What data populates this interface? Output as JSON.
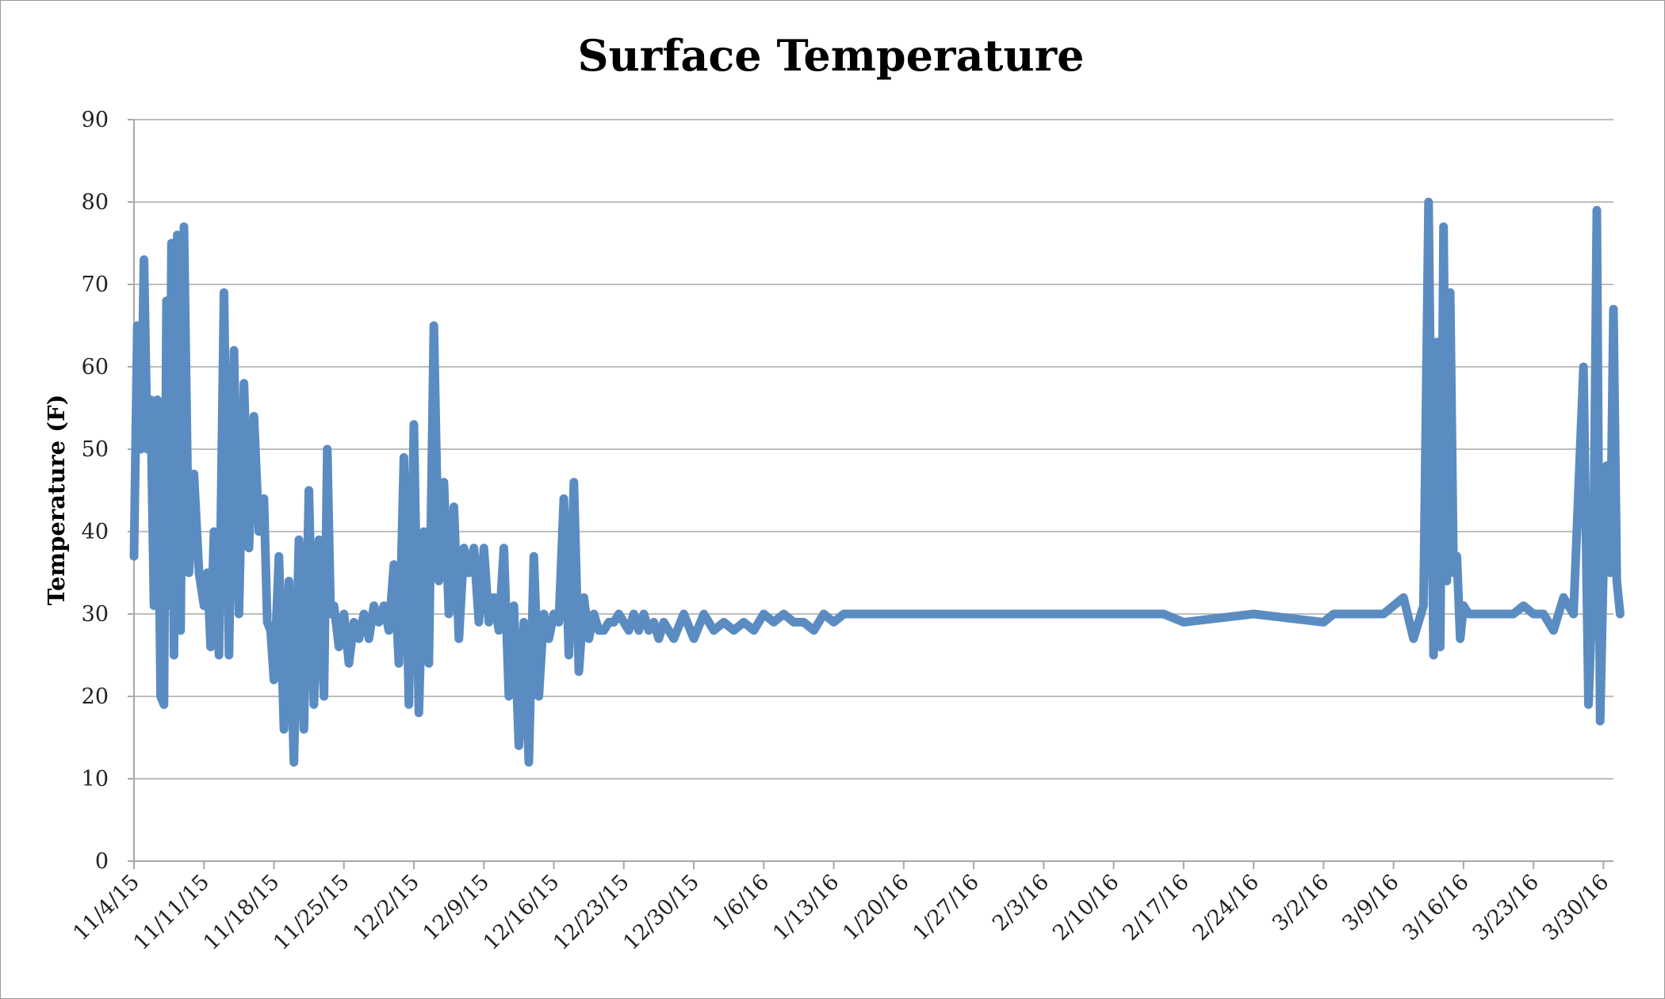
{
  "chart_data": {
    "type": "line",
    "title": "Surface Temperature",
    "xlabel": "",
    "ylabel": "Temperature (F)",
    "ylim": [
      0,
      90
    ],
    "y_ticks": [
      0,
      10,
      20,
      30,
      40,
      50,
      60,
      70,
      80,
      90
    ],
    "x_range": [
      "11/4/15",
      "3/31/16"
    ],
    "x_tick_labels": [
      "11/4/15",
      "11/11/15",
      "11/18/15",
      "11/25/15",
      "12/2/15",
      "12/9/15",
      "12/16/15",
      "12/23/15",
      "12/30/15",
      "1/6/16",
      "1/13/16",
      "1/20/16",
      "1/27/16",
      "2/3/16",
      "2/10/16",
      "2/17/16",
      "2/24/16",
      "3/2/16",
      "3/9/16",
      "3/16/16",
      "3/23/16",
      "3/30/16"
    ],
    "grid": true,
    "legend": "none",
    "series": [
      {
        "color": "#5b8cc1",
        "x": [
          "11/4/15",
          "11/4/15",
          "11/4/15",
          "11/5/15",
          "11/5/15",
          "11/5/15",
          "11/6/15",
          "11/6/15",
          "11/6/15",
          "11/7/15",
          "11/7/15",
          "11/7/15",
          "11/7/15",
          "11/8/15",
          "11/8/15",
          "11/8/15",
          "11/9/15",
          "11/9/15",
          "11/10/15",
          "11/10/15",
          "11/11/15",
          "11/11/15",
          "11/11/15",
          "11/12/15",
          "11/12/15",
          "11/13/15",
          "11/13/15",
          "11/14/15",
          "11/14/15",
          "11/15/15",
          "11/15/15",
          "11/16/15",
          "11/16/15",
          "11/17/15",
          "11/17/15",
          "11/17/15",
          "11/18/15",
          "11/18/15",
          "11/19/15",
          "11/19/15",
          "11/20/15",
          "11/20/15",
          "11/21/15",
          "11/21/15",
          "11/22/15",
          "11/22/15",
          "11/23/15",
          "11/23/15",
          "11/23/15",
          "11/24/15",
          "11/24/15",
          "11/25/15",
          "11/25/15",
          "11/26/15",
          "11/26/15",
          "11/27/15",
          "11/27/15",
          "11/28/15",
          "11/28/15",
          "11/29/15",
          "11/29/15",
          "11/30/15",
          "11/30/15",
          "12/1/15",
          "12/1/15",
          "12/2/15",
          "12/2/15",
          "12/3/15",
          "12/3/15",
          "12/4/15",
          "12/4/15",
          "12/5/15",
          "12/5/15",
          "12/6/15",
          "12/6/15",
          "12/7/15",
          "12/7/15",
          "12/8/15",
          "12/8/15",
          "12/9/15",
          "12/9/15",
          "12/10/15",
          "12/10/15",
          "12/11/15",
          "12/11/15",
          "12/12/15",
          "12/12/15",
          "12/13/15",
          "12/13/15",
          "12/14/15",
          "12/14/15",
          "12/15/15",
          "12/15/15",
          "12/16/15",
          "12/16/15",
          "12/17/15",
          "12/17/15",
          "12/18/15",
          "12/18/15",
          "12/19/15",
          "12/19/15",
          "12/20/15",
          "12/20/15",
          "12/21/15",
          "12/21/15",
          "12/22/15",
          "12/22/15",
          "12/23/15",
          "12/23/15",
          "12/24/15",
          "12/24/15",
          "12/25/15",
          "12/25/15",
          "12/26/15",
          "12/26/15",
          "12/27/15",
          "12/28/15",
          "12/29/15",
          "12/30/15",
          "12/31/15",
          "1/1/16",
          "1/2/16",
          "1/3/16",
          "1/4/16",
          "1/5/16",
          "1/6/16",
          "1/7/16",
          "1/8/16",
          "1/9/16",
          "1/10/16",
          "1/11/16",
          "1/12/16",
          "1/13/16",
          "1/14/16",
          "1/15/16",
          "1/16/16",
          "1/17/16",
          "1/18/16",
          "1/19/16",
          "1/20/16",
          "1/21/16",
          "1/22/16",
          "1/23/16",
          "1/25/16",
          "1/27/16",
          "1/30/16",
          "2/3/16",
          "2/10/16",
          "2/14/16",
          "2/15/16",
          "2/17/16",
          "2/24/16",
          "3/2/16",
          "3/3/16",
          "3/4/16",
          "3/5/16",
          "3/6/16",
          "3/8/16",
          "3/10/16",
          "3/11/16",
          "3/12/16",
          "3/12/16",
          "3/13/16",
          "3/13/16",
          "3/13/16",
          "3/14/16",
          "3/14/16",
          "3/14/16",
          "3/15/16",
          "3/15/16",
          "3/15/16",
          "3/16/16",
          "3/16/16",
          "3/17/16",
          "3/18/16",
          "3/19/16",
          "3/20/16",
          "3/21/16",
          "3/22/16",
          "3/23/16",
          "3/24/16",
          "3/25/16",
          "3/26/16",
          "3/27/16",
          "3/28/16",
          "3/28/16",
          "3/29/16",
          "3/29/16",
          "3/29/16",
          "3/30/16",
          "3/30/16",
          "3/30/16",
          "3/31/16",
          "3/31/16",
          "3/31/16"
        ],
        "y": [
          37,
          65,
          50,
          73,
          50,
          56,
          31,
          56,
          20,
          19,
          68,
          31,
          75,
          25,
          76,
          28,
          77,
          35,
          47,
          35,
          31,
          35,
          26,
          40,
          25,
          69,
          25,
          62,
          30,
          58,
          38,
          54,
          40,
          44,
          29,
          28,
          22,
          37,
          16,
          34,
          12,
          39,
          16,
          45,
          19,
          39,
          20,
          50,
          30,
          31,
          26,
          30,
          24,
          29,
          27,
          30,
          27,
          31,
          29,
          31,
          28,
          36,
          24,
          49,
          19,
          53,
          18,
          40,
          24,
          65,
          34,
          46,
          30,
          43,
          27,
          38,
          35,
          38,
          29,
          38,
          29,
          32,
          28,
          38,
          20,
          31,
          14,
          29,
          12,
          37,
          20,
          30,
          27,
          30,
          29,
          44,
          25,
          46,
          23,
          32,
          27,
          30,
          28,
          28,
          29,
          29,
          30,
          29,
          28,
          30,
          28,
          30,
          28,
          29,
          27,
          29,
          27,
          30,
          27,
          30,
          28,
          29,
          28,
          29,
          28,
          30,
          29,
          30,
          29,
          29,
          28,
          30,
          29,
          30,
          30,
          30,
          30,
          30,
          30,
          30,
          30,
          30,
          30,
          30,
          30,
          30,
          30,
          30,
          30,
          30,
          29,
          30,
          29,
          30,
          30,
          30,
          30,
          30,
          32,
          27,
          31,
          80,
          25,
          63,
          26,
          77,
          34,
          69,
          35,
          37,
          27,
          31,
          30,
          30,
          30,
          30,
          30,
          30,
          31,
          30,
          30,
          28,
          32,
          30,
          60,
          19,
          36,
          79,
          17,
          36,
          48,
          35,
          67,
          34,
          30
        ]
      }
    ]
  }
}
